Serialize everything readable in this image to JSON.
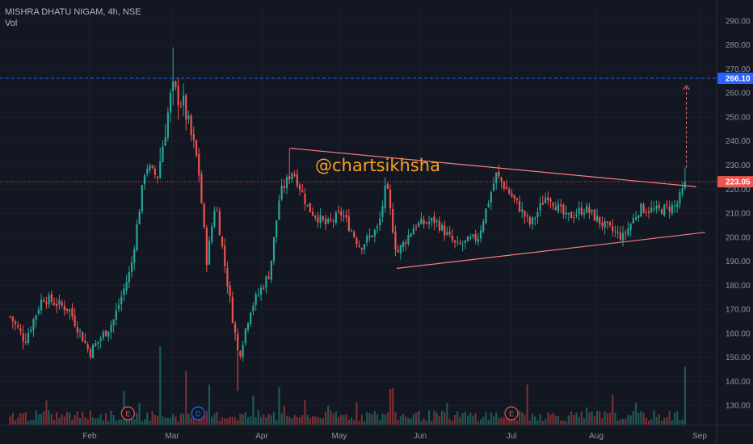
{
  "header": {
    "symbol": "MISHRA DHATU NIGAM, 4h, NSE",
    "volume_label": "Vol"
  },
  "watermark": "@chartsikhsha",
  "colors": {
    "background": "#131722",
    "up": "#26a69a",
    "down": "#ef5350",
    "up_vol": "#1d5a55",
    "down_vol": "#7a2f32",
    "target_line": "#2962ff",
    "target_tag": "#2962ff",
    "last_line": "#ef5350",
    "last_tag": "#ef5350",
    "pattern": "#f77c80",
    "grid": "#1c2030"
  },
  "chart_data": {
    "type": "candlestick",
    "title": "MISHRA DHATU NIGAM, 4h, NSE",
    "y_ticks": [
      "290.00",
      "280.00",
      "270.00",
      "260.00",
      "250.00",
      "240.00",
      "230.00",
      "220.00",
      "210.00",
      "200.00",
      "190.00",
      "180.00",
      "170.00",
      "160.00",
      "150.00",
      "140.00",
      "130.00"
    ],
    "x_ticks": [
      "Feb",
      "Mar",
      "Apr",
      "May",
      "Jun",
      "Jul",
      "Aug",
      "Sep"
    ],
    "ylim": [
      122,
      296
    ],
    "price_tags": {
      "target": "266.10",
      "last": "223.05"
    },
    "lines": {
      "upper_trendline": {
        "from": {
          "date": "Apr 12",
          "price": 237
        },
        "to": {
          "date": "Aug 31",
          "price": 221
        }
      },
      "lower_trendline": {
        "from": {
          "date": "May 23",
          "price": 187
        },
        "to": {
          "date": "Sep 3",
          "price": 202
        }
      },
      "target_arrow": {
        "date": "Aug 28",
        "from": 229,
        "to": 263
      }
    },
    "event_markers": [
      {
        "label": "E",
        "date": "Feb 14",
        "kind": "earnings"
      },
      {
        "label": "D",
        "date": "Mar 10",
        "kind": "dividend"
      },
      {
        "label": "E",
        "date": "Jul 1",
        "kind": "earnings"
      }
    ],
    "price_path_keypoints": [
      {
        "date": "Jan 5",
        "price": 167
      },
      {
        "date": "Jan 10",
        "price": 157
      },
      {
        "date": "Jan 16",
        "price": 175
      },
      {
        "date": "Jan 25",
        "price": 170
      },
      {
        "date": "Feb 1",
        "price": 152
      },
      {
        "date": "Feb 9",
        "price": 165
      },
      {
        "date": "Feb 15",
        "price": 187
      },
      {
        "date": "Feb 20",
        "price": 230
      },
      {
        "date": "Feb 24",
        "price": 225
      },
      {
        "date": "Mar 1",
        "price": 262
      },
      {
        "date": "Mar 5",
        "price": 255
      },
      {
        "date": "Mar 10",
        "price": 230
      },
      {
        "date": "Mar 13",
        "price": 190
      },
      {
        "date": "Mar 16",
        "price": 215
      },
      {
        "date": "Mar 19",
        "price": 190
      },
      {
        "date": "Mar 24",
        "price": 150
      },
      {
        "date": "Mar 28",
        "price": 170
      },
      {
        "date": "Apr 4",
        "price": 185
      },
      {
        "date": "Apr 8",
        "price": 218
      },
      {
        "date": "Apr 13",
        "price": 228
      },
      {
        "date": "Apr 19",
        "price": 212
      },
      {
        "date": "Apr 26",
        "price": 205
      },
      {
        "date": "May 2",
        "price": 210
      },
      {
        "date": "May 9",
        "price": 196
      },
      {
        "date": "May 16",
        "price": 204
      },
      {
        "date": "May 19",
        "price": 222
      },
      {
        "date": "May 23",
        "price": 193
      },
      {
        "date": "May 30",
        "price": 205
      },
      {
        "date": "Jun 6",
        "price": 207
      },
      {
        "date": "Jun 13",
        "price": 196
      },
      {
        "date": "Jun 20",
        "price": 200
      },
      {
        "date": "Jun 26",
        "price": 226
      },
      {
        "date": "Jul 3",
        "price": 214
      },
      {
        "date": "Jul 8",
        "price": 205
      },
      {
        "date": "Jul 14",
        "price": 218
      },
      {
        "date": "Jul 21",
        "price": 208
      },
      {
        "date": "Jul 28",
        "price": 212
      },
      {
        "date": "Aug 4",
        "price": 204
      },
      {
        "date": "Aug 9",
        "price": 200
      },
      {
        "date": "Aug 14",
        "price": 212
      },
      {
        "date": "Aug 19",
        "price": 211
      },
      {
        "date": "Aug 25",
        "price": 213
      },
      {
        "date": "Aug 28",
        "price": 223
      }
    ],
    "volume_spikes": [
      {
        "date": "Feb 25",
        "rel": 0.72
      },
      {
        "date": "Mar 6",
        "rel": 0.6
      },
      {
        "date": "Mar 14",
        "rel": 0.45
      },
      {
        "date": "Apr 8",
        "rel": 0.42
      },
      {
        "date": "May 21",
        "rel": 0.4
      },
      {
        "date": "Jul 7",
        "rel": 0.45
      },
      {
        "date": "Aug 28",
        "rel": 0.65
      }
    ]
  }
}
